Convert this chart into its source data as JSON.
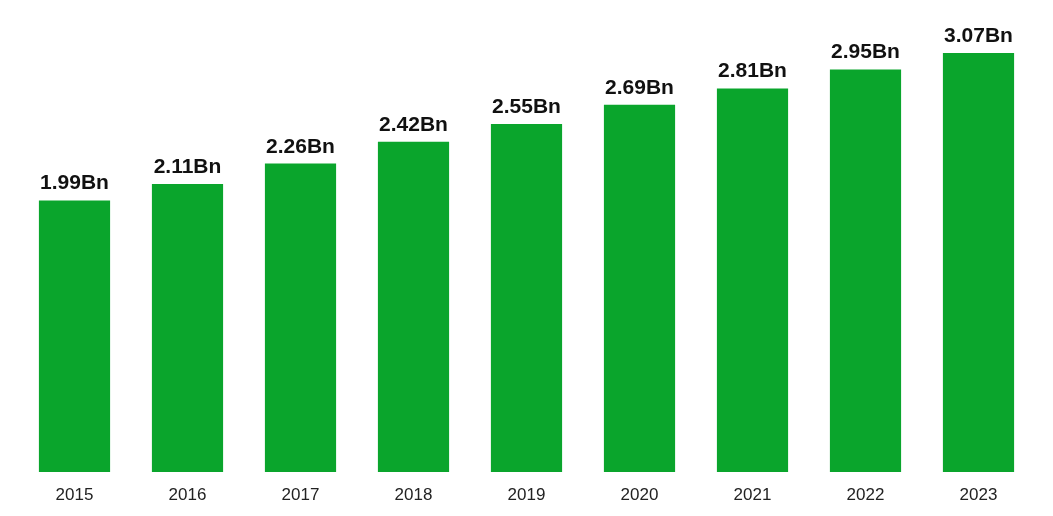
{
  "chart_data": {
    "type": "bar",
    "categories": [
      "2015",
      "2016",
      "2017",
      "2018",
      "2019",
      "2020",
      "2021",
      "2022",
      "2023"
    ],
    "values": [
      1.99,
      2.11,
      2.26,
      2.42,
      2.55,
      2.69,
      2.81,
      2.95,
      3.07
    ],
    "value_labels": [
      "1.99Bn",
      "2.11Bn",
      "2.26Bn",
      "2.42Bn",
      "2.55Bn",
      "2.69Bn",
      "2.81Bn",
      "2.95Bn",
      "3.07Bn"
    ],
    "color": "#0aa52c",
    "tick_labels": "x",
    "grid": false
  }
}
